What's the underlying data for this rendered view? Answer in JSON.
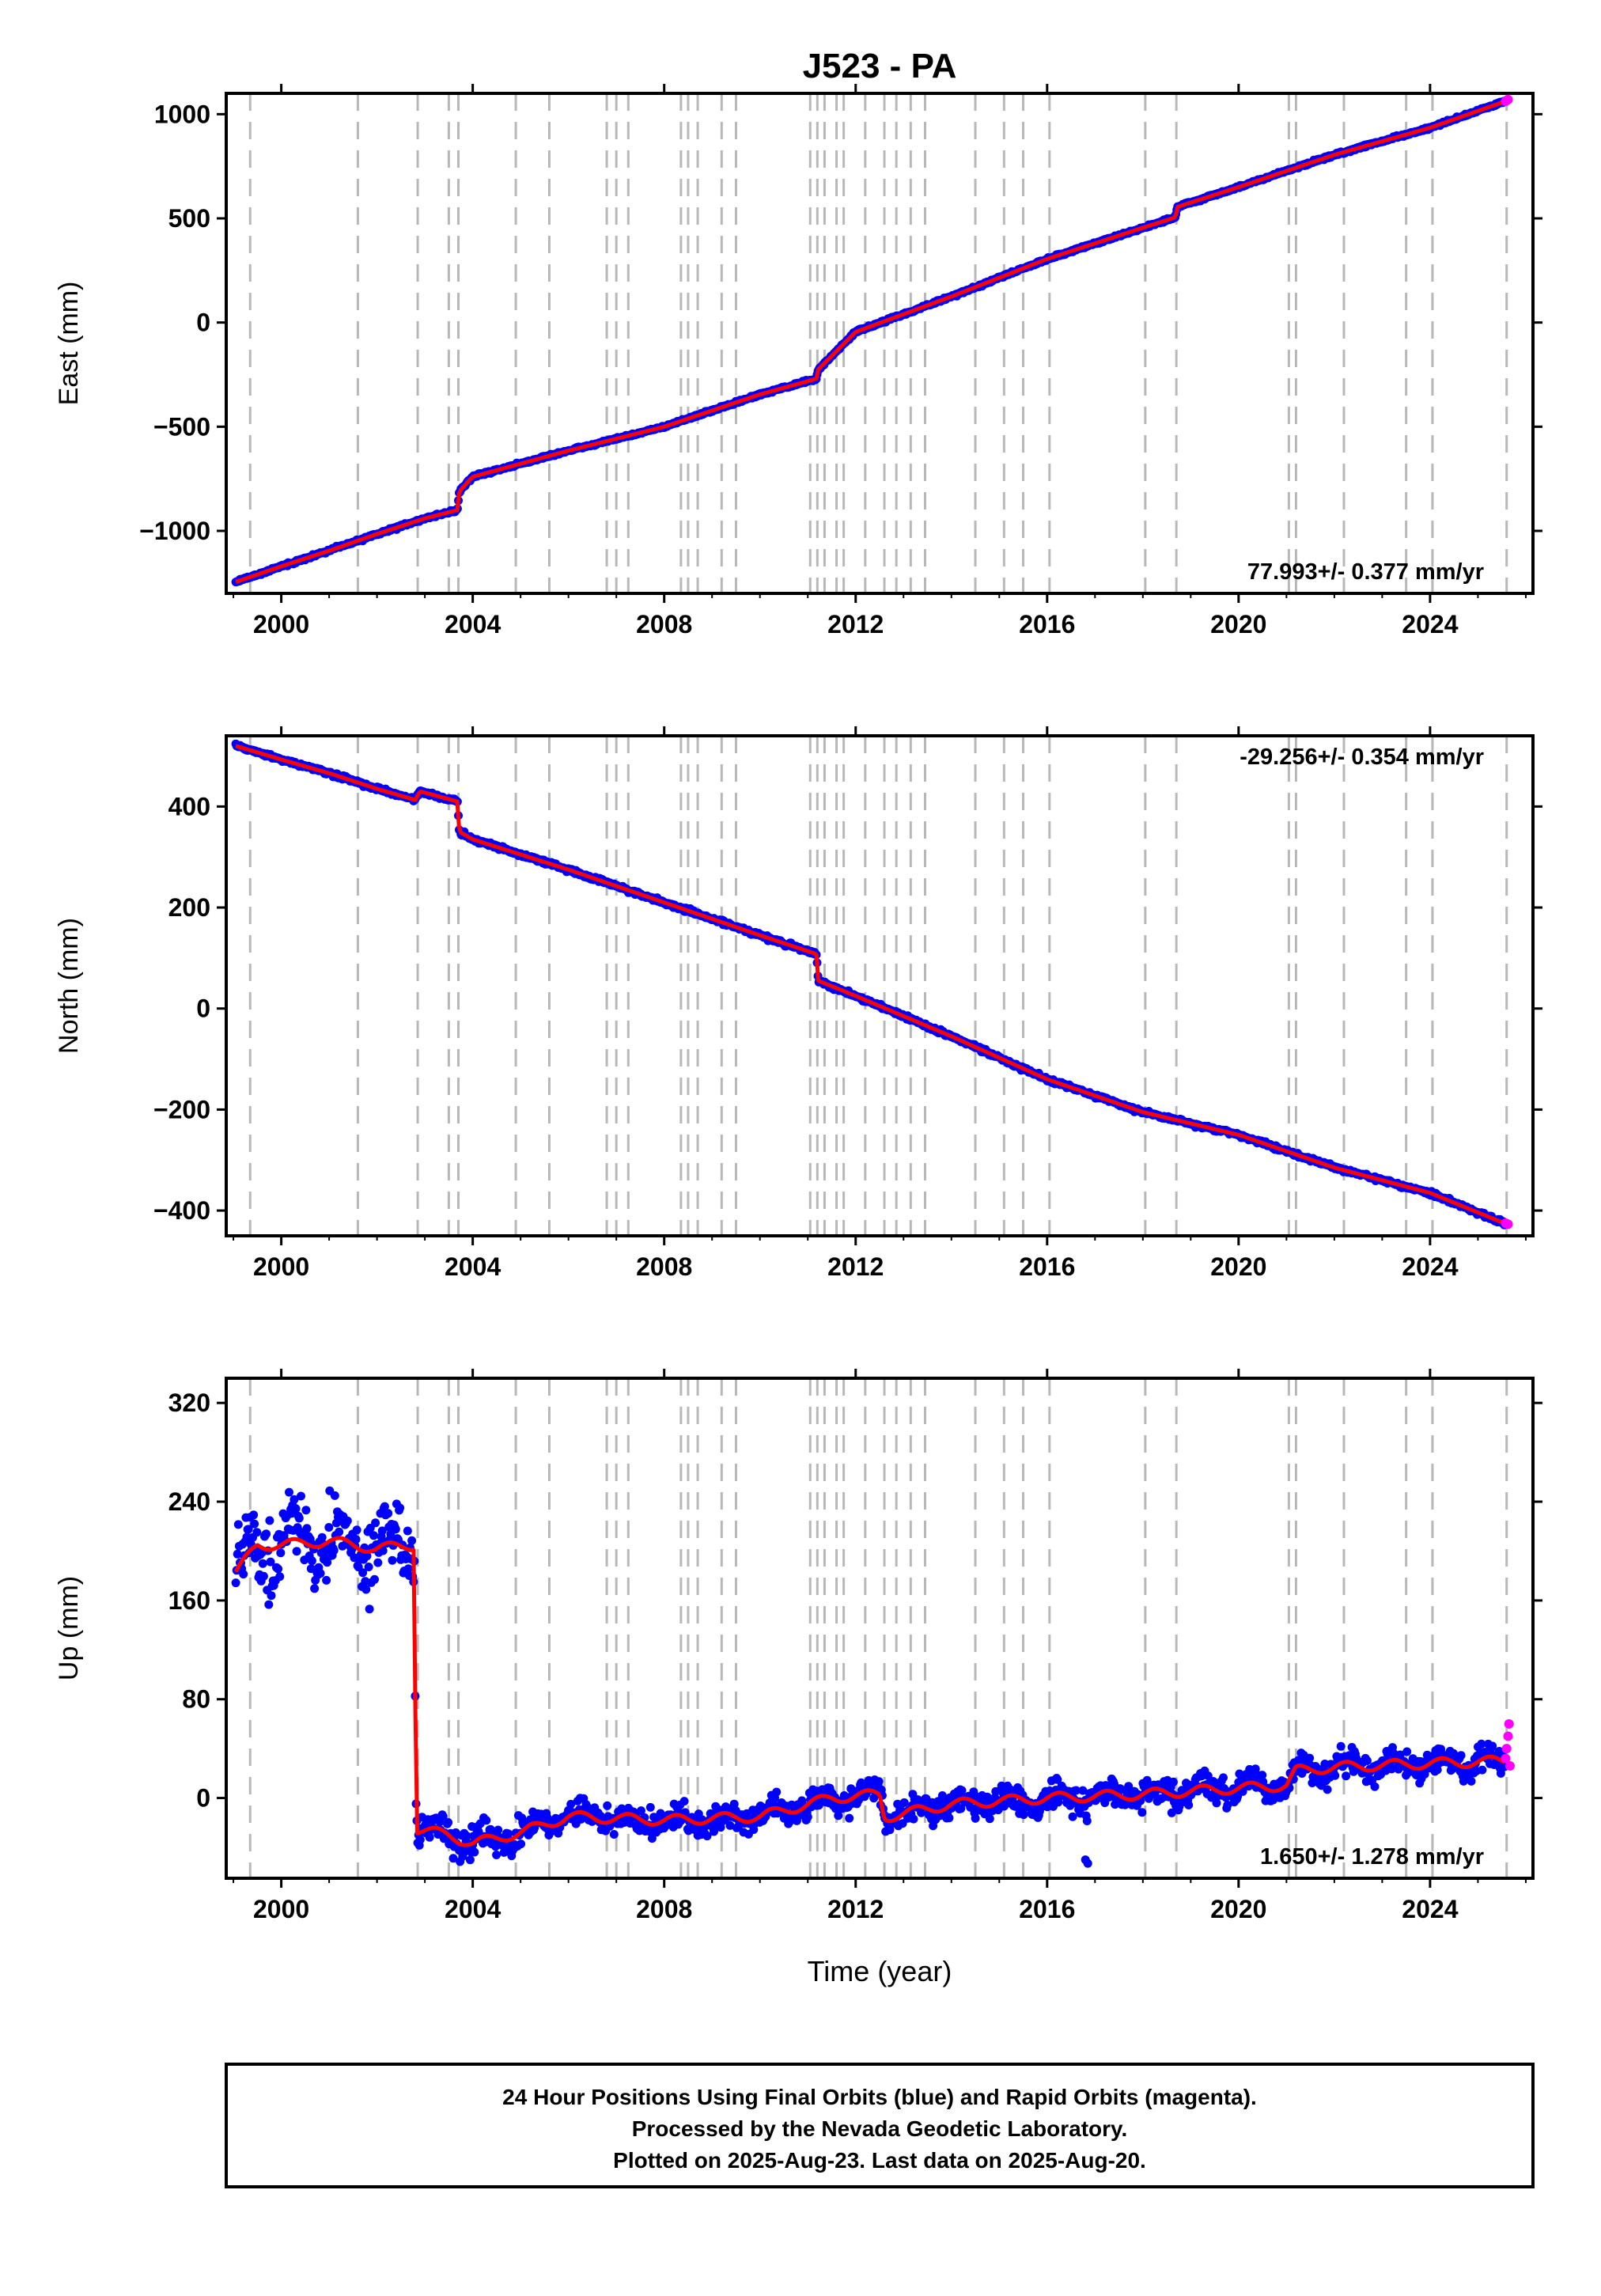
{
  "title": "J523 - PA",
  "xlabel": "Time (year)",
  "footer": {
    "line1": "24 Hour Positions Using Final Orbits (blue) and Rapid Orbits (magenta).",
    "line2": "Processed by the Nevada Geodetic Laboratory.",
    "line3": "Plotted on 2025-Aug-23. Last data on 2025-Aug-20."
  },
  "colors": {
    "final_orbits": "#0000ff",
    "rapid_orbits": "#ff00ff",
    "model": "#ff0000",
    "event_lines": "#b8b8b8"
  },
  "chart_data": [
    {
      "type": "scatter",
      "panel": "east",
      "ylabel": "East (mm)",
      "rate_label": "77.993+/- 0.377 mm/yr",
      "rate_position": "bottom-right",
      "xlim": [
        1998.85,
        2026.15
      ],
      "ylim": [
        -1300,
        1100
      ],
      "yticks": [
        -1000,
        -500,
        0,
        500,
        1000
      ],
      "xticks": [
        2000,
        2004,
        2008,
        2012,
        2016,
        2020,
        2024
      ],
      "offsets": [
        [
          2003.7,
          80
        ],
        [
          2011.2,
          40
        ],
        [
          2018.7,
          25
        ]
      ],
      "series": [
        {
          "name": "Final Orbits",
          "color": "#0000ff",
          "x": [
            1999.05,
            2000.0,
            2001.0,
            2002.0,
            2003.0,
            2003.68,
            2003.72,
            2004.0,
            2006.0,
            2008.0,
            2010.0,
            2011.18,
            2011.22,
            2012.0,
            2014.0,
            2016.0,
            2018.0,
            2018.68,
            2018.72,
            2020.0,
            2022.0,
            2024.0,
            2025.55
          ],
          "y": [
            -1245,
            -1170,
            -1095,
            -1015,
            -940,
            -900,
            -810,
            -740,
            -615,
            -500,
            -345,
            -270,
            -225,
            -45,
            125,
            305,
            455,
            505,
            555,
            650,
            805,
            935,
            1060
          ]
        },
        {
          "name": "Rapid Orbits",
          "color": "#ff00ff",
          "x": [
            2025.58,
            2025.6,
            2025.63
          ],
          "y": [
            1062,
            1066,
            1070
          ]
        }
      ]
    },
    {
      "type": "scatter",
      "panel": "north",
      "ylabel": "North (mm)",
      "rate_label": "-29.256+/- 0.354 mm/yr",
      "rate_position": "top-right",
      "xlim": [
        1998.85,
        2026.15
      ],
      "ylim": [
        -450,
        540
      ],
      "yticks": [
        -400,
        -200,
        0,
        200,
        400
      ],
      "xticks": [
        2000,
        2004,
        2008,
        2012,
        2016,
        2020,
        2024
      ],
      "offsets": [
        [
          2002.85,
          18
        ],
        [
          2003.7,
          -55
        ],
        [
          2011.2,
          -55
        ]
      ],
      "series": [
        {
          "name": "Final Orbits",
          "color": "#0000ff",
          "x": [
            1999.05,
            2000.0,
            2001.0,
            2002.0,
            2002.8,
            2002.9,
            2003.68,
            2003.72,
            2004.0,
            2006.0,
            2008.0,
            2010.0,
            2011.18,
            2011.22,
            2012.0,
            2014.0,
            2016.0,
            2018.0,
            2020.0,
            2022.0,
            2024.0,
            2025.55
          ],
          "y": [
            520,
            493,
            466,
            435,
            413,
            430,
            410,
            350,
            335,
            275,
            210,
            145,
            108,
            55,
            25,
            -55,
            -140,
            -205,
            -250,
            -315,
            -365,
            -425
          ]
        },
        {
          "name": "Rapid Orbits",
          "color": "#ff00ff",
          "x": [
            2025.58,
            2025.6,
            2025.63
          ],
          "y": [
            -425,
            -426,
            -427
          ]
        }
      ]
    },
    {
      "type": "scatter",
      "panel": "up",
      "ylabel": "Up (mm)",
      "rate_label": "1.650+/- 1.278 mm/yr",
      "rate_position": "bottom-right",
      "xlim": [
        1998.85,
        2026.15
      ],
      "ylim": [
        -65,
        340
      ],
      "yticks": [
        0,
        80,
        160,
        240,
        320
      ],
      "xticks": [
        2000,
        2004,
        2008,
        2012,
        2016,
        2020,
        2024
      ],
      "series": [
        {
          "name": "Final Orbits",
          "color": "#0000ff",
          "x": [
            1999.05,
            1999.5,
            2000.0,
            2001.0,
            2002.0,
            2002.78,
            2002.82,
            2003.5,
            2004.0,
            2005.0,
            2006.0,
            2008.0,
            2010.0,
            2011.5,
            2012.5,
            2012.6,
            2012.7,
            2014.0,
            2016.0,
            2018.0,
            2020.0,
            2021.0,
            2021.2,
            2022.0,
            2024.0,
            2025.55
          ],
          "y": [
            182,
            205,
            205,
            208,
            202,
            205,
            -25,
            -30,
            -37,
            -28,
            -15,
            -18,
            -15,
            0,
            3,
            -15,
            -15,
            -5,
            0,
            3,
            8,
            10,
            22,
            25,
            28,
            30
          ]
        },
        {
          "name": "Rapid Orbits",
          "color": "#ff00ff",
          "x": [
            2025.58,
            2025.6,
            2025.63,
            2025.65,
            2025.67
          ],
          "y": [
            32,
            40,
            50,
            60,
            26
          ]
        }
      ]
    }
  ],
  "event_lines": [
    1999.35,
    2001.6,
    2002.85,
    2003.5,
    2003.7,
    2004.9,
    2005.6,
    2006.8,
    2007.0,
    2007.25,
    2008.35,
    2008.5,
    2008.7,
    2009.2,
    2009.5,
    2011.05,
    2011.2,
    2011.35,
    2011.6,
    2011.75,
    2012.2,
    2012.6,
    2012.85,
    2013.15,
    2013.45,
    2014.5,
    2015.1,
    2015.5,
    2016.05,
    2018.05,
    2018.7,
    2021.05,
    2021.2,
    2022.2,
    2023.5,
    2024.05,
    2025.6
  ]
}
